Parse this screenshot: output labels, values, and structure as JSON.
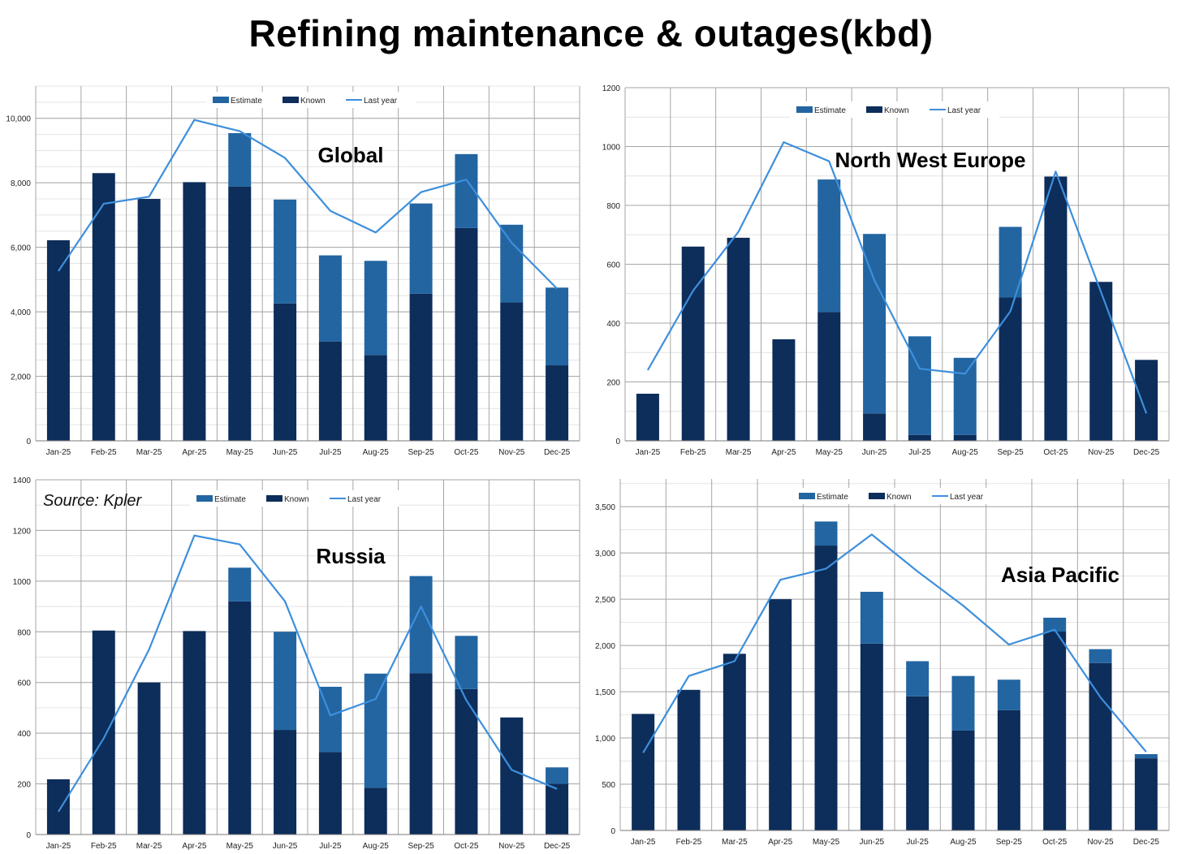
{
  "title": "Refining maintenance & outages(kbd)",
  "source": "Source: Kpler",
  "legend": {
    "estimate": "Estimate",
    "known": "Known",
    "last_year": "Last year"
  },
  "colors": {
    "known": "#0d2d5a",
    "estimate": "#2265a1",
    "last_year": "#3d8fdc",
    "grid": "#a6a6a6",
    "minor_grid": "#e4e4e4"
  },
  "chart_data": [
    {
      "type": "bar",
      "title": "Global",
      "categories": [
        "Jan-25",
        "Feb-25",
        "Mar-25",
        "Apr-25",
        "May-25",
        "Jun-25",
        "Jul-25",
        "Aug-25",
        "Sep-25",
        "Oct-25",
        "Nov-25",
        "Dec-25"
      ],
      "series": [
        {
          "name": "Known",
          "values": [
            6220,
            8300,
            7500,
            8020,
            7880,
            4260,
            3080,
            2660,
            4560,
            6600,
            4290,
            2340
          ]
        },
        {
          "name": "Estimate",
          "values": [
            0,
            0,
            0,
            0,
            1660,
            3220,
            2670,
            2920,
            2800,
            2290,
            2410,
            2410
          ]
        },
        {
          "name": "Last year",
          "values": [
            5260,
            7350,
            7570,
            9950,
            9600,
            8770,
            7130,
            6460,
            7710,
            8100,
            6140,
            4720
          ]
        }
      ],
      "ylim": [
        0,
        11000
      ],
      "yticks": [
        0,
        2000,
        4000,
        6000,
        8000,
        10000
      ],
      "ytick_labels": [
        "0",
        "2,000",
        "4,000",
        "6,000",
        "8,000",
        "10,000"
      ],
      "minor_step": 500
    },
    {
      "type": "bar",
      "title": "North West Europe",
      "categories": [
        "Jan-25",
        "Feb-25",
        "Mar-25",
        "Apr-25",
        "May-25",
        "Jun-25",
        "Jul-25",
        "Aug-25",
        "Sep-25",
        "Oct-25",
        "Nov-25",
        "Dec-25"
      ],
      "series": [
        {
          "name": "Known",
          "values": [
            160,
            660,
            690,
            345,
            438,
            93,
            20,
            20,
            487,
            898,
            540,
            275
          ]
        },
        {
          "name": "Estimate",
          "values": [
            0,
            0,
            0,
            0,
            450,
            610,
            335,
            262,
            240,
            0,
            0,
            0
          ]
        },
        {
          "name": "Last year",
          "values": [
            240,
            510,
            710,
            1015,
            950,
            545,
            245,
            228,
            440,
            915,
            505,
            93
          ]
        }
      ],
      "ylim": [
        0,
        1200
      ],
      "yticks": [
        0,
        200,
        400,
        600,
        800,
        1000,
        1200
      ],
      "ytick_labels": [
        "0",
        "200",
        "400",
        "600",
        "800",
        "1000",
        "1200"
      ],
      "minor_step": 100
    },
    {
      "type": "bar",
      "title": "Russia",
      "categories": [
        "Jan-25",
        "Feb-25",
        "Mar-25",
        "Apr-25",
        "May-25",
        "Jun-25",
        "Jul-25",
        "Aug-25",
        "Sep-25",
        "Oct-25",
        "Nov-25",
        "Dec-25"
      ],
      "series": [
        {
          "name": "Known",
          "values": [
            218,
            805,
            600,
            803,
            920,
            413,
            325,
            185,
            637,
            574,
            462,
            200
          ]
        },
        {
          "name": "Estimate",
          "values": [
            0,
            0,
            0,
            0,
            133,
            387,
            258,
            450,
            383,
            210,
            0,
            65
          ]
        },
        {
          "name": "Last year",
          "values": [
            90,
            380,
            730,
            1180,
            1145,
            920,
            470,
            535,
            900,
            530,
            255,
            180
          ]
        }
      ],
      "ylim": [
        0,
        1400
      ],
      "yticks": [
        0,
        200,
        400,
        600,
        800,
        1000,
        1200,
        1400
      ],
      "ytick_labels": [
        "0",
        "200",
        "400",
        "600",
        "800",
        "1000",
        "1200",
        "1400"
      ],
      "minor_step": 100
    },
    {
      "type": "bar",
      "title": "Asia Pacific",
      "categories": [
        "Jan-25",
        "Feb-25",
        "Mar-25",
        "Apr-25",
        "May-25",
        "Jun-25",
        "Jul-25",
        "Aug-25",
        "Sep-25",
        "Oct-25",
        "Nov-25",
        "Dec-25"
      ],
      "series": [
        {
          "name": "Known",
          "values": [
            1260,
            1520,
            1910,
            2500,
            3080,
            2020,
            1450,
            1080,
            1300,
            2150,
            1810,
            780
          ]
        },
        {
          "name": "Estimate",
          "values": [
            0,
            0,
            0,
            0,
            260,
            560,
            380,
            590,
            330,
            150,
            150,
            45
          ]
        },
        {
          "name": "Last year",
          "values": [
            840,
            1670,
            1830,
            2710,
            2830,
            3200,
            2800,
            2430,
            2010,
            2170,
            1440,
            850
          ]
        }
      ],
      "ylim": [
        0,
        3800
      ],
      "yticks": [
        0,
        500,
        1000,
        1500,
        2000,
        2500,
        3000,
        3500
      ],
      "ytick_labels": [
        "0",
        "500",
        "1,000",
        "1,500",
        "2,000",
        "2,500",
        "3,000",
        "3,500"
      ],
      "minor_step": 250
    }
  ]
}
